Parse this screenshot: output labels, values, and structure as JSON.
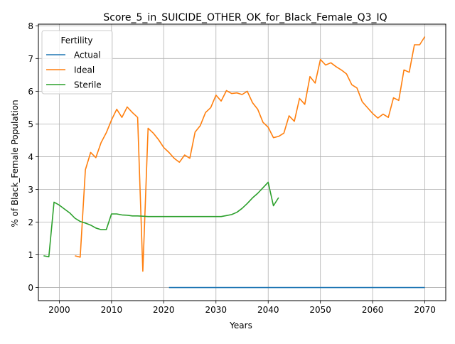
{
  "chart_data": {
    "type": "line",
    "title": "Score_5_in_SUICIDE_OTHER_OK_for_Black_Female_Q3_IQ",
    "xlabel": "Years",
    "ylabel": "% of Black_Female Population",
    "xlim": [
      1996,
      2074
    ],
    "ylim": [
      -0.4,
      8.05
    ],
    "xticks": [
      2000,
      2010,
      2020,
      2030,
      2040,
      2050,
      2060,
      2070
    ],
    "yticks": [
      0,
      1,
      2,
      3,
      4,
      5,
      6,
      7,
      8
    ],
    "grid": true,
    "legend": {
      "title": "Fertility",
      "placement": "top-left"
    },
    "series": [
      {
        "name": "Actual",
        "color": "#1f77b4",
        "x": [
          2021,
          2070
        ],
        "y": [
          0.0,
          0.0
        ]
      },
      {
        "name": "Ideal",
        "color": "#ff7f0e",
        "x": [
          2003,
          2004,
          2005,
          2006,
          2007,
          2008,
          2009,
          2010,
          2011,
          2012,
          2013,
          2014,
          2015,
          2016,
          2017,
          2018,
          2019,
          2020,
          2021,
          2022,
          2023,
          2024,
          2025,
          2026,
          2027,
          2028,
          2029,
          2030,
          2031,
          2032,
          2033,
          2034,
          2035,
          2036,
          2037,
          2038,
          2039,
          2040,
          2041,
          2042,
          2043,
          2044,
          2045,
          2046,
          2047,
          2048,
          2049,
          2050,
          2051,
          2052,
          2053,
          2054,
          2055,
          2056,
          2057,
          2058,
          2059,
          2060,
          2061,
          2062,
          2063,
          2064,
          2065,
          2066,
          2067,
          2068,
          2069,
          2070
        ],
        "y": [
          0.97,
          0.93,
          3.6,
          4.13,
          3.97,
          4.43,
          4.73,
          5.12,
          5.45,
          5.2,
          5.52,
          5.35,
          5.2,
          0.5,
          4.87,
          4.72,
          4.52,
          4.28,
          4.13,
          3.95,
          3.83,
          4.05,
          3.95,
          4.75,
          4.95,
          5.35,
          5.5,
          5.88,
          5.7,
          6.02,
          5.93,
          5.95,
          5.9,
          6.0,
          5.65,
          5.45,
          5.05,
          4.9,
          4.58,
          4.62,
          4.72,
          5.25,
          5.08,
          5.78,
          5.6,
          6.45,
          6.25,
          6.97,
          6.8,
          6.87,
          6.75,
          6.65,
          6.53,
          6.2,
          6.1,
          5.68,
          5.5,
          5.32,
          5.18,
          5.3,
          5.2,
          5.8,
          5.72,
          6.65,
          6.58,
          7.42,
          7.42,
          7.67
        ]
      },
      {
        "name": "Sterile",
        "color": "#2ca02c",
        "x": [
          1997,
          1998,
          1999,
          2000,
          2001,
          2002,
          2003,
          2004,
          2005,
          2006,
          2007,
          2008,
          2009,
          2010,
          2011,
          2012,
          2013,
          2014,
          2015,
          2016,
          2017,
          2018,
          2019,
          2020,
          2021,
          2022,
          2023,
          2024,
          2025,
          2026,
          2027,
          2028,
          2029,
          2030,
          2031,
          2032,
          2033,
          2034,
          2035,
          2036,
          2037,
          2038,
          2039,
          2040,
          2041,
          2042
        ],
        "y": [
          0.97,
          0.94,
          2.61,
          2.52,
          2.4,
          2.28,
          2.12,
          2.02,
          1.97,
          1.91,
          1.82,
          1.77,
          1.77,
          2.25,
          2.25,
          2.22,
          2.21,
          2.19,
          2.19,
          2.18,
          2.17,
          2.17,
          2.17,
          2.17,
          2.17,
          2.17,
          2.17,
          2.17,
          2.17,
          2.17,
          2.17,
          2.17,
          2.17,
          2.17,
          2.17,
          2.2,
          2.23,
          2.3,
          2.42,
          2.57,
          2.74,
          2.88,
          3.05,
          3.22,
          2.5,
          2.75
        ]
      }
    ]
  }
}
